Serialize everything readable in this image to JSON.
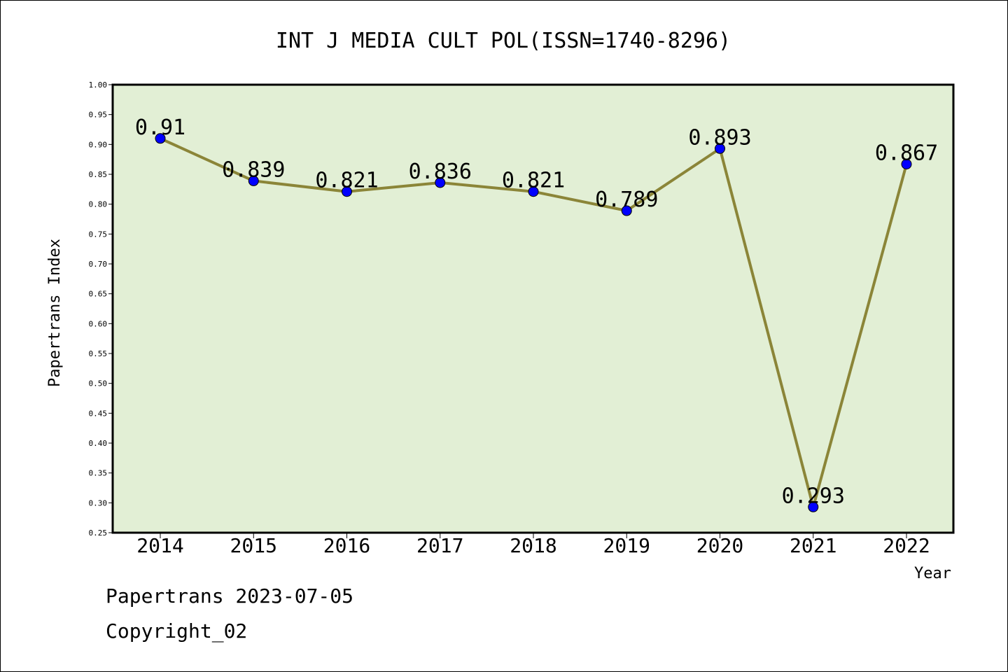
{
  "chart_data": {
    "type": "line",
    "title": "INT J MEDIA CULT POL(ISSN=1740-8296)",
    "xlabel": "Year",
    "ylabel": "Papertrans Index",
    "categories": [
      "2014",
      "2015",
      "2016",
      "2017",
      "2018",
      "2019",
      "2020",
      "2021",
      "2022"
    ],
    "series": [
      {
        "values": [
          0.91,
          0.839,
          0.821,
          0.836,
          0.821,
          0.789,
          0.893,
          0.293,
          0.867
        ],
        "labels": [
          "0.91",
          "0.839",
          "0.821",
          "0.836",
          "0.821",
          "0.789",
          "0.893",
          "0.293",
          "0.867"
        ]
      }
    ],
    "ylim": [
      0.25,
      1.0
    ],
    "yticks": [
      "0.25",
      "0.30",
      "0.35",
      "0.40",
      "0.45",
      "0.50",
      "0.55",
      "0.60",
      "0.65",
      "0.70",
      "0.75",
      "0.80",
      "0.85",
      "0.90",
      "0.95",
      "1.00"
    ],
    "grid": false,
    "colors": {
      "plot_background": "#e2efd5",
      "line": "#8b8538",
      "marker": "#0000ff"
    }
  },
  "footer": {
    "line1": "Papertrans 2023-07-05",
    "line2": "Copyright_02"
  }
}
